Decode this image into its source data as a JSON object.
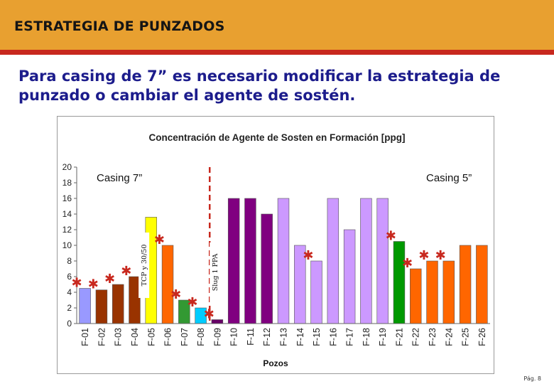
{
  "slide": {
    "title": "ESTRATEGIA DE PUNZADOS",
    "subtitle": "Para casing de 7” es necesario modificar la estrategia de punzado o cambiar el agente de sostén.",
    "page": "Pág. 8"
  },
  "colors": {
    "banner": "#e8a030",
    "banner_line": "#c8281e",
    "subtitle": "#1c1c8c",
    "divider": "#c8281e",
    "star": "#c8281e"
  },
  "chart_data": {
    "type": "bar",
    "title": "Concentración de Agente de Sosten en Formación [ppg]",
    "xlabel": "Pozos",
    "ylabel": "",
    "ylim": [
      0,
      20
    ],
    "yticks": [
      0,
      2,
      4,
      6,
      8,
      10,
      12,
      14,
      16,
      18,
      20
    ],
    "grid": false,
    "categories": [
      "F-01",
      "F-02",
      "F-03",
      "F-04",
      "F-05",
      "F-06",
      "F-07",
      "F-08",
      "F-09",
      "F-10",
      "F-11",
      "F-12",
      "F-13",
      "F-14",
      "F-15",
      "F-16",
      "F-17",
      "F-18",
      "F-19",
      "F-21",
      "F-22",
      "F-23",
      "F-24",
      "F-25",
      "F-26"
    ],
    "values": [
      4.5,
      4.3,
      5.0,
      6.0,
      13.6,
      10.0,
      3.0,
      2.0,
      0.5,
      16.0,
      16.0,
      14.0,
      16.0,
      10.0,
      8.0,
      16.0,
      12.0,
      16.0,
      16.0,
      10.5,
      7.0,
      8.0,
      8.0,
      10.0,
      10.0
    ],
    "bar_colors": [
      "#9999ff",
      "#993300",
      "#993300",
      "#993300",
      "#ffff00",
      "#ff6600",
      "#339933",
      "#00ccff",
      "#660066",
      "#800080",
      "#800080",
      "#800080",
      "#cc99ff",
      "#cc99ff",
      "#cc99ff",
      "#cc99ff",
      "#cc99ff",
      "#cc99ff",
      "#cc99ff",
      "#009900",
      "#ff6600",
      "#ff6600",
      "#ff6600",
      "#ff6600",
      "#ff6600"
    ],
    "starred": [
      "F-01",
      "F-02",
      "F-03",
      "F-04",
      "F-06",
      "F-07",
      "F-08",
      "F-09",
      "F-15",
      "F-21",
      "F-22",
      "F-23",
      "F-24"
    ],
    "annotations": {
      "casing7": "Casing 7”",
      "casing5": "Casing 5”",
      "tcp": "TCP y 30/50",
      "slug": "Slug 1 PPA"
    }
  }
}
